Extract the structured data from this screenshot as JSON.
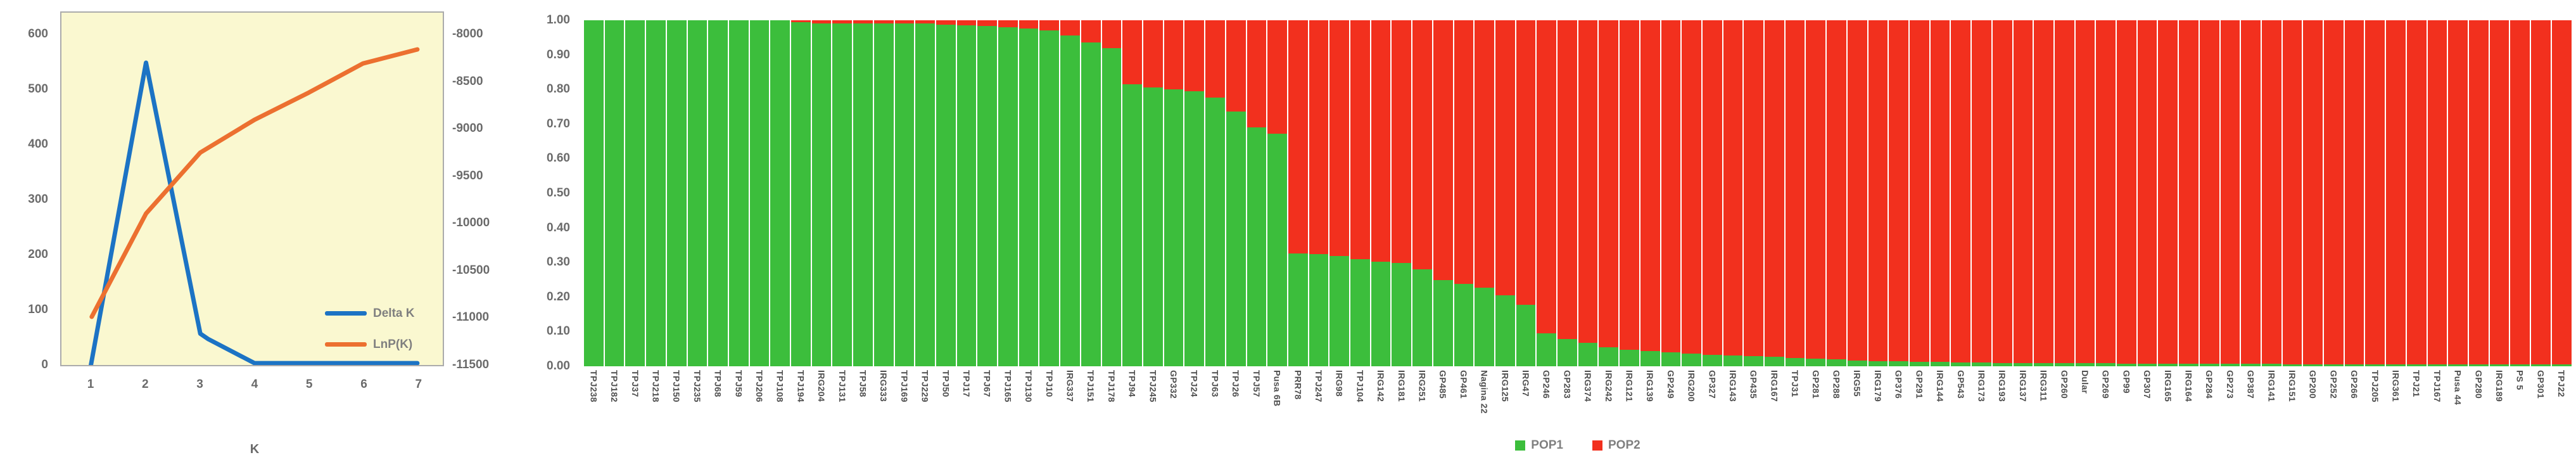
{
  "palette": {
    "plot_background": "#FAF8D0",
    "frame": "#ABABAB",
    "axis_text": "#6A6A6A",
    "bar_label_text": "#4F4F4F",
    "legend_text": "#7F7F7F",
    "delta_k_blue": "#1C73C4",
    "lnpk_orange": "#EC7030",
    "pop1_green": "#3CBE3C",
    "pop2_red": "#F2301E"
  },
  "chart_data": [
    {
      "type": "line",
      "xlabel": "K",
      "x": [
        1,
        2,
        3,
        4,
        5,
        6,
        7
      ],
      "x_tick_labels": [
        "1",
        "2",
        "3",
        "4",
        "5",
        "6",
        "7"
      ],
      "left_ylim": [
        0,
        600
      ],
      "right_ylim": [
        -11500,
        -8000
      ],
      "left_yticks": [
        600,
        500,
        400,
        300,
        200,
        100,
        0
      ],
      "right_yticks": [
        -8000,
        -8500,
        -9000,
        -9500,
        -10000,
        -10500,
        -11000,
        -11500
      ],
      "grid": false,
      "legend_position": "inside-bottom-right",
      "series": [
        {
          "name": "Delta K",
          "axis": "left",
          "color": "#1C73C4",
          "values": [
            0,
            550,
            55,
            2,
            2,
            2,
            2
          ],
          "shape_points": [
            [
              0.98,
              -5
            ],
            [
              2,
              550
            ],
            [
              3,
              55
            ],
            [
              3.15,
              45
            ],
            [
              4,
              1
            ],
            [
              5,
              1
            ],
            [
              6,
              1
            ],
            [
              7,
              1
            ]
          ]
        },
        {
          "name": "LnP(K)",
          "axis": "right",
          "color": "#EC7030",
          "values": [
            -11000,
            -9900,
            -9250,
            -8900,
            -8610,
            -8300,
            -8150
          ]
        }
      ]
    },
    {
      "type": "bar",
      "stacked": true,
      "normalized": true,
      "ylim": [
        0,
        1
      ],
      "y_tick_labels": [
        "1.00",
        "0.90",
        "0.80",
        "0.70",
        "0.60",
        "0.50",
        "0.40",
        "0.30",
        "0.20",
        "0.10",
        "0.00"
      ],
      "legend_position": "bottom-center",
      "categories": [
        "TPJ238",
        "TPJ182",
        "TPJ37",
        "TPJ218",
        "TPJ150",
        "TPJ235",
        "TPJ68",
        "TPJ59",
        "TPJ206",
        "TPJ108",
        "TPJ194",
        "IRG204",
        "TPJ131",
        "TPJ58",
        "IRG333",
        "TPJ169",
        "TPJ229",
        "TPJ50",
        "TPJ17",
        "TPJ67",
        "TPJ165",
        "TPJ130",
        "TPJ10",
        "IRG337",
        "TPJ151",
        "TPJ178",
        "TPJ94",
        "TPJ245",
        "GP332",
        "TPJ24",
        "TPJ63",
        "TPJ26",
        "TPJ57",
        "Pusa 6B",
        "PRR78",
        "TPJ247",
        "IRG98",
        "TPJ104",
        "IRG142",
        "IRG181",
        "IRG251",
        "GP485",
        "GP461",
        "Nagina 22",
        "IRG125",
        "IRG47",
        "GP246",
        "GP283",
        "IRG374",
        "IRG242",
        "IRG121",
        "IRG139",
        "GP249",
        "IRG200",
        "GP327",
        "IRG143",
        "GP435",
        "IRG167",
        "TPJ31",
        "GP281",
        "GP288",
        "IRG55",
        "IRG179",
        "GP376",
        "GP291",
        "IRG144",
        "GP543",
        "IRG173",
        "IRG193",
        "IRG137",
        "IRG311",
        "GP260",
        "Dular",
        "GP269",
        "GP99",
        "GP307",
        "IRG165",
        "IRG164",
        "GP284",
        "GP273",
        "GP387",
        "IRG141",
        "IRG151",
        "GP200",
        "GP252",
        "GP266",
        "TPJ205",
        "IRG361",
        "TPJ21",
        "TPJ167",
        "Pusa 44",
        "GP280",
        "IRG189",
        "PS 5",
        "GP301",
        "TPJ22"
      ],
      "series": [
        {
          "name": "POP1",
          "color": "#3CBE3C",
          "values": [
            1.0,
            1.0,
            1.0,
            1.0,
            1.0,
            1.0,
            1.0,
            1.0,
            1.0,
            1.0,
            0.995,
            0.99,
            0.99,
            0.99,
            0.99,
            0.99,
            0.99,
            0.988,
            0.986,
            0.984,
            0.98,
            0.976,
            0.97,
            0.956,
            0.936,
            0.92,
            0.815,
            0.806,
            0.8,
            0.794,
            0.776,
            0.737,
            0.69,
            0.672,
            0.326,
            0.325,
            0.318,
            0.31,
            0.303,
            0.298,
            0.28,
            0.25,
            0.238,
            0.228,
            0.205,
            0.178,
            0.095,
            0.078,
            0.068,
            0.055,
            0.048,
            0.044,
            0.04,
            0.036,
            0.033,
            0.031,
            0.029,
            0.027,
            0.024,
            0.022,
            0.02,
            0.017,
            0.015,
            0.014,
            0.013,
            0.012,
            0.011,
            0.011,
            0.01,
            0.01,
            0.01,
            0.009,
            0.009,
            0.009,
            0.008,
            0.008,
            0.008,
            0.008,
            0.007,
            0.007,
            0.007,
            0.007,
            0.006,
            0.006,
            0.006,
            0.006,
            0.006,
            0.005,
            0.005,
            0.005,
            0.005,
            0.005,
            0.005,
            0.005,
            0.005,
            0.005
          ]
        },
        {
          "name": "POP2",
          "color": "#F2301E",
          "values": "complement-of-POP1"
        }
      ]
    }
  ]
}
